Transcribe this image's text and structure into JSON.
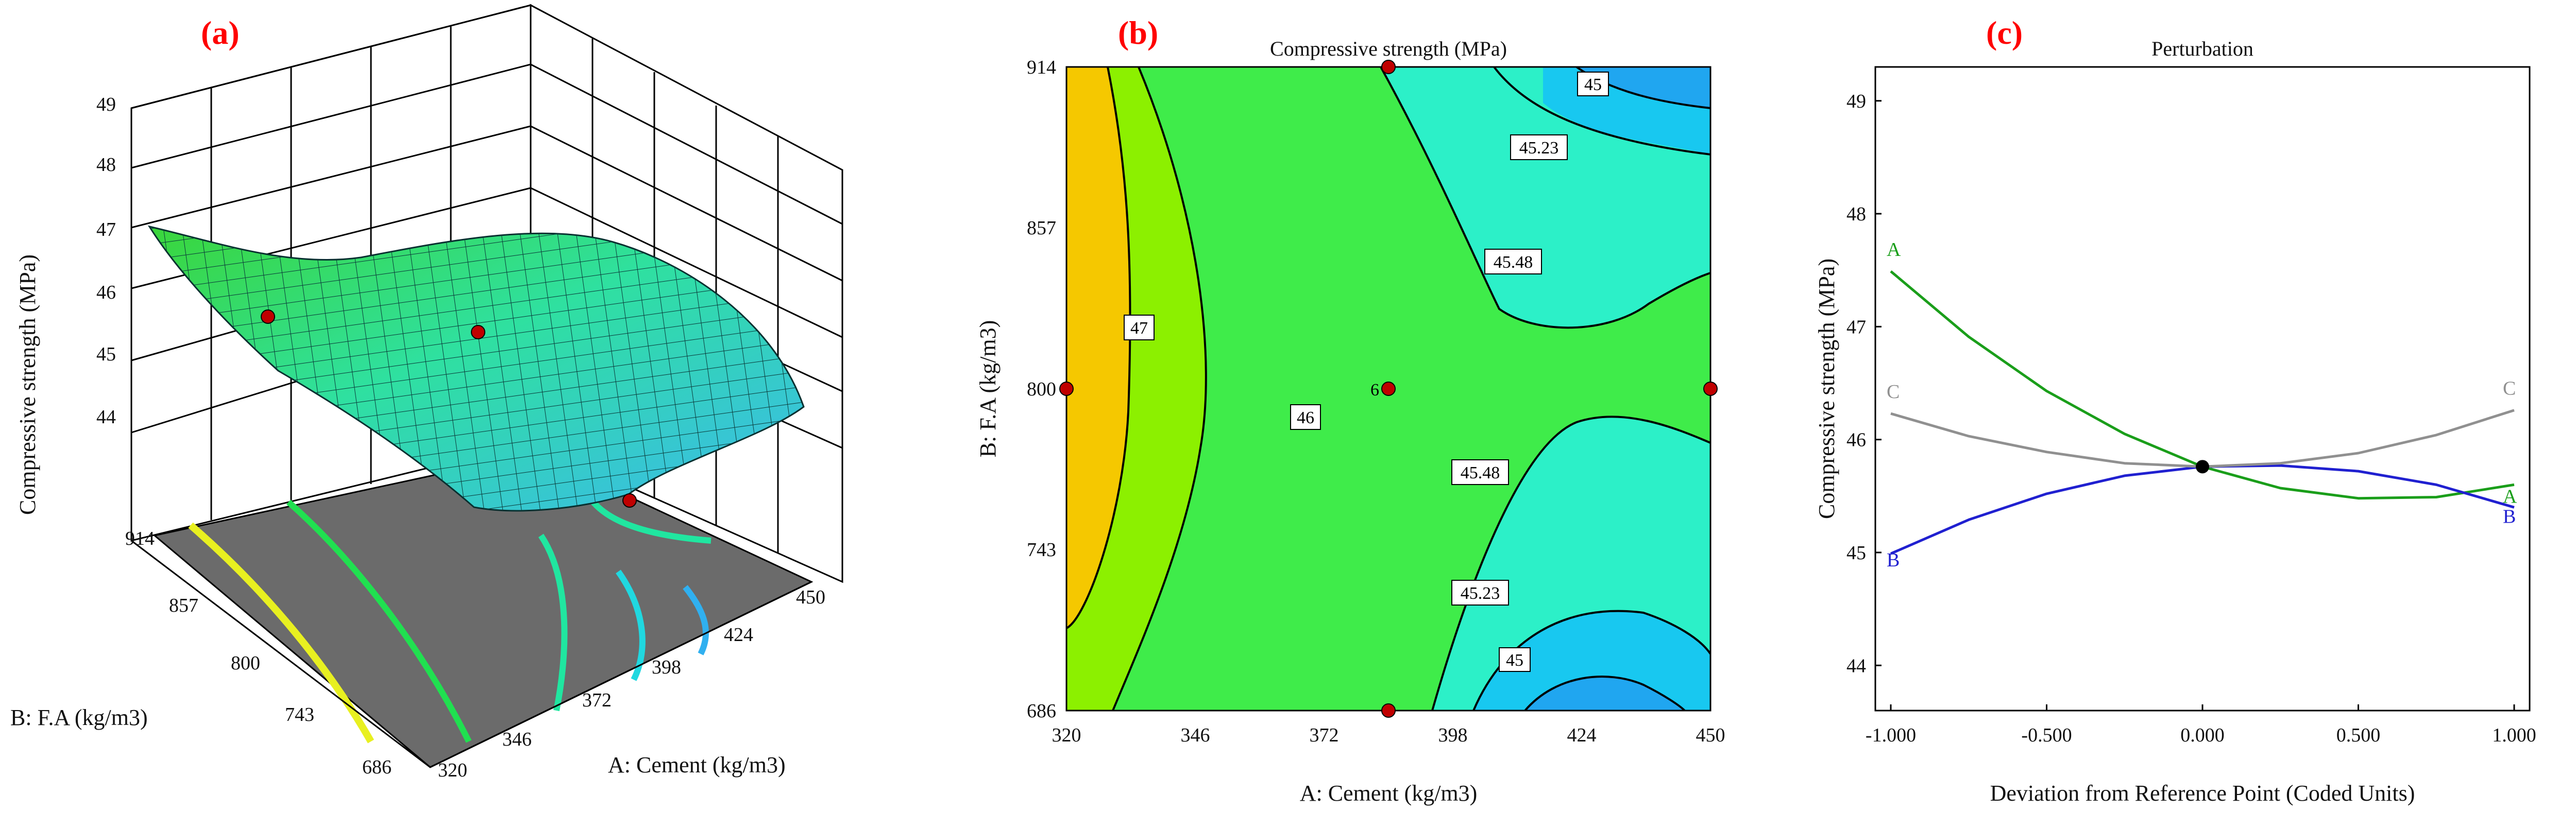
{
  "chart_data": [
    {
      "panel": "(a)",
      "type": "surface3d",
      "title": "",
      "xlabel": "A: Cement (kg/m3)",
      "ylabel": "B: F.A (kg/m3)",
      "zlabel": "Compressive strength (MPa)",
      "x_ticks": [
        "320",
        "346",
        "372",
        "398",
        "424",
        "450"
      ],
      "y_ticks": [
        "686",
        "743",
        "800",
        "857",
        "914"
      ],
      "z_ticks": [
        "44",
        "45",
        "46",
        "47",
        "48",
        "49"
      ],
      "xlim": [
        320,
        450
      ],
      "ylim": [
        686,
        914
      ],
      "zlim": [
        44,
        49
      ],
      "design_points": [
        {
          "cement": 320,
          "fa": 800,
          "strength": 46.2
        },
        {
          "cement": 385,
          "fa": 914,
          "strength": 45.9
        },
        {
          "cement": 385,
          "fa": 686,
          "strength": 44.3
        }
      ]
    },
    {
      "panel": "(b)",
      "type": "contour",
      "title": "Compressive strength (MPa)",
      "xlabel": "A: Cement (kg/m3)",
      "ylabel": "B: F.A (kg/m3)",
      "x_ticks": [
        "320",
        "346",
        "372",
        "398",
        "424",
        "450"
      ],
      "y_ticks": [
        "686",
        "743",
        "800",
        "857",
        "914"
      ],
      "xlim": [
        320,
        450
      ],
      "ylim": [
        686,
        914
      ],
      "contour_labels": [
        "47",
        "46",
        "45.48",
        "45.48",
        "45.23",
        "45.23",
        "45",
        "45"
      ],
      "center_point_count": "6",
      "design_points": [
        {
          "cement": 320,
          "fa": 800
        },
        {
          "cement": 385,
          "fa": 800
        },
        {
          "cement": 450,
          "fa": 800
        },
        {
          "cement": 385,
          "fa": 914
        },
        {
          "cement": 385,
          "fa": 686
        }
      ]
    },
    {
      "panel": "(c)",
      "type": "line",
      "title": "Perturbation",
      "xlabel": "Deviation from Reference Point (Coded Units)",
      "ylabel": "Compressive strength (MPa)",
      "x_ticks": [
        "-1.000",
        "-0.500",
        "0.000",
        "0.500",
        "1.000"
      ],
      "y_ticks": [
        "44",
        "45",
        "46",
        "47",
        "48",
        "49"
      ],
      "xlim": [
        -1,
        1
      ],
      "ylim": [
        43.6,
        49.3
      ],
      "reference_point": {
        "x": 0,
        "y": 45.76
      },
      "series": [
        {
          "name": "A",
          "color": "#1a9e1a",
          "x": [
            -1,
            -0.75,
            -0.5,
            -0.25,
            0,
            0.25,
            0.5,
            0.75,
            1
          ],
          "y": [
            47.49,
            46.91,
            46.43,
            46.05,
            45.76,
            45.57,
            45.48,
            45.49,
            45.6
          ]
        },
        {
          "name": "B",
          "color": "#2020d0",
          "x": [
            -1,
            -0.75,
            -0.5,
            -0.25,
            0,
            0.25,
            0.5,
            0.75,
            1
          ],
          "y": [
            44.99,
            45.29,
            45.52,
            45.68,
            45.76,
            45.77,
            45.72,
            45.6,
            45.4
          ]
        },
        {
          "name": "C",
          "color": "#909090",
          "x": [
            -1,
            -0.75,
            -0.5,
            -0.25,
            0,
            0.25,
            0.5,
            0.75,
            1
          ],
          "y": [
            46.23,
            46.03,
            45.89,
            45.79,
            45.76,
            45.79,
            45.88,
            46.04,
            46.26
          ]
        }
      ]
    }
  ]
}
